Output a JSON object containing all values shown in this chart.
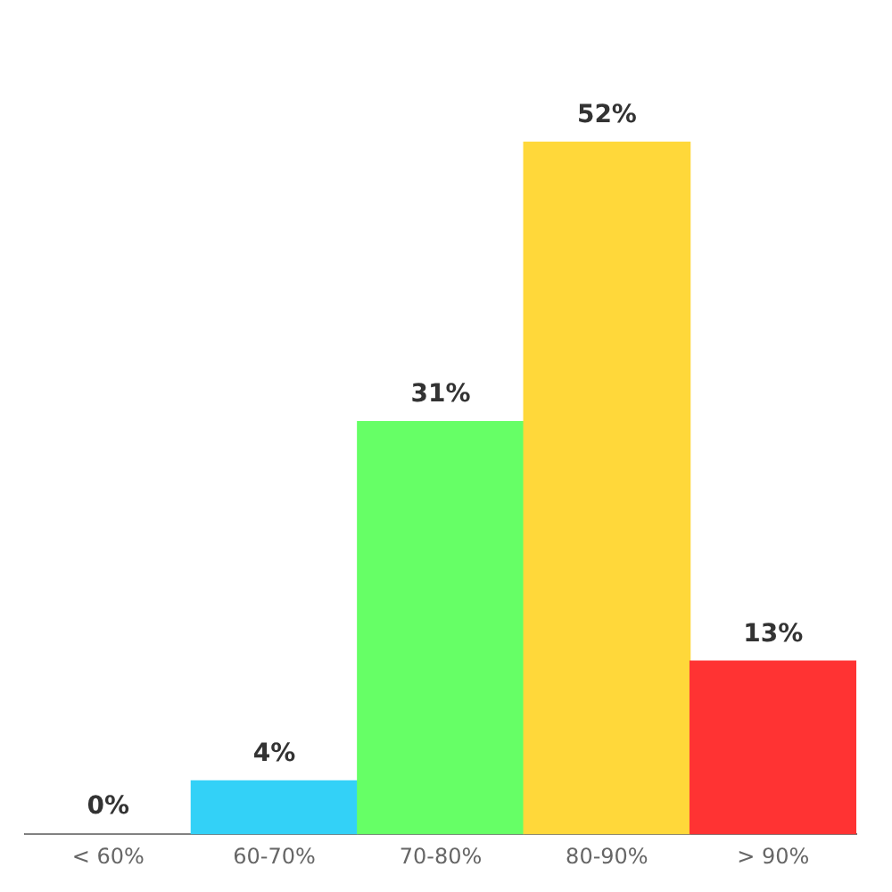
{
  "chart_data": {
    "type": "bar",
    "categories": [
      "< 60%",
      "60-70%",
      "70-80%",
      "80-90%",
      "> 90%"
    ],
    "values": [
      0,
      4,
      31,
      52,
      13
    ],
    "colors": [
      "#999999",
      "#33d1f7",
      "#66ff66",
      "#ffd83a",
      "#ff3333"
    ],
    "value_labels": [
      "0%",
      "4%",
      "31%",
      "52%",
      "13%"
    ],
    "grid": false,
    "legend": false
  }
}
